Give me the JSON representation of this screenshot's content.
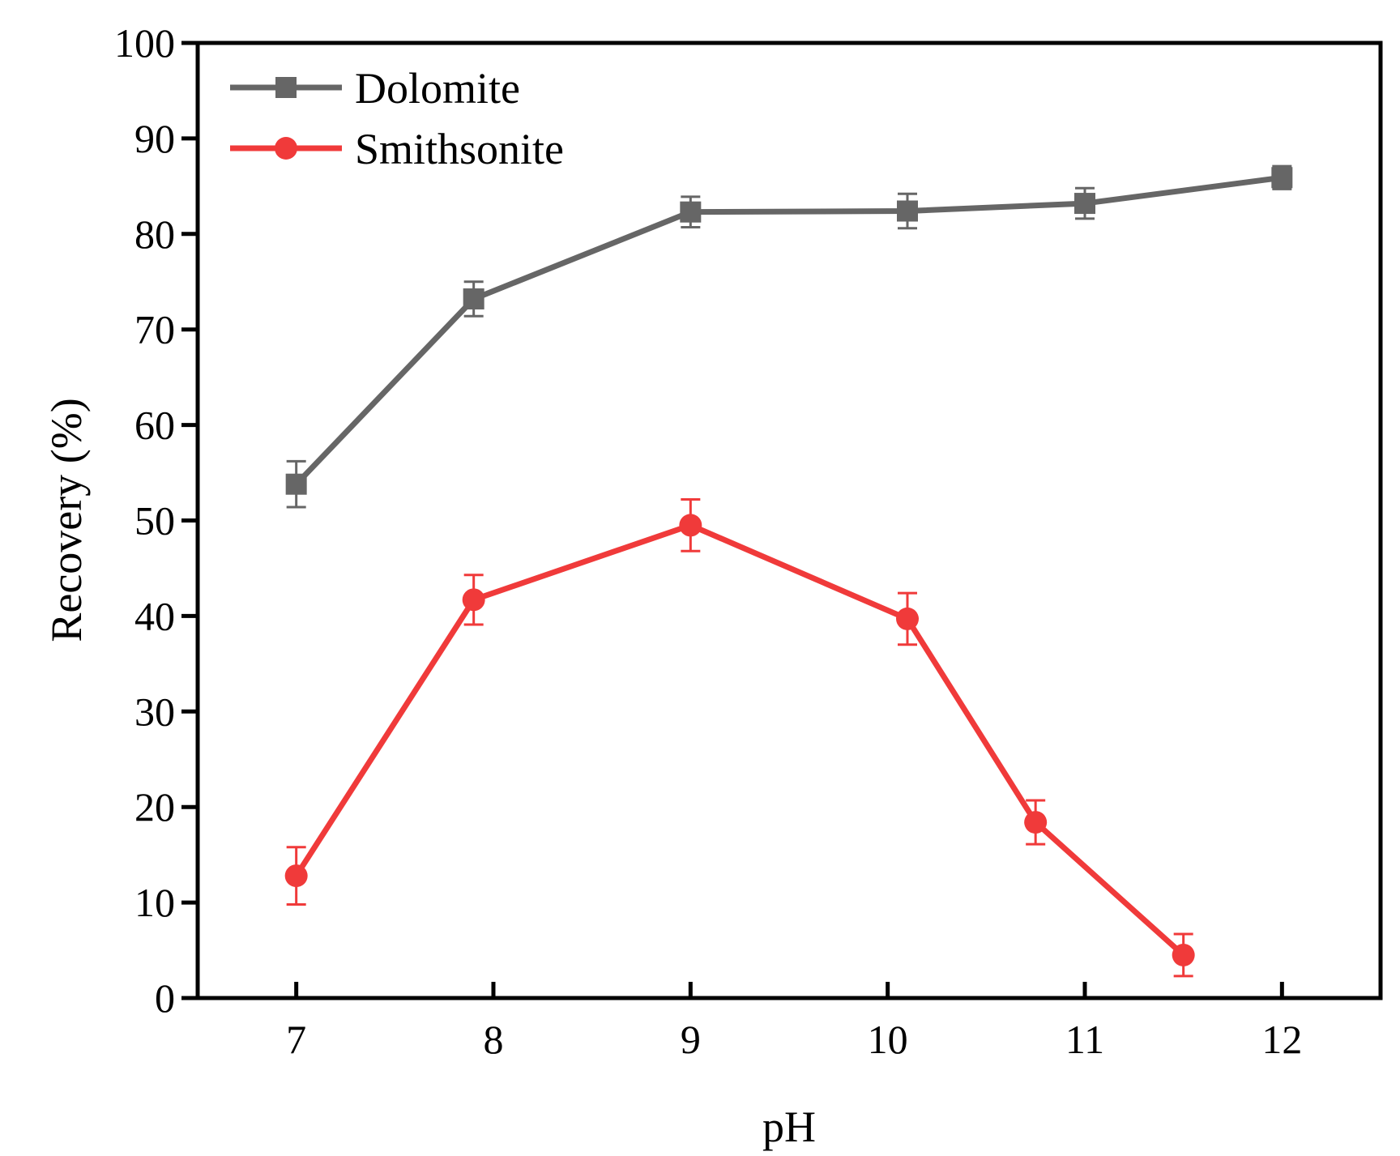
{
  "chart_data": {
    "type": "line",
    "title": "",
    "xlabel": "pH",
    "ylabel": "Recovery (%)",
    "xlim": [
      6.5,
      12.5
    ],
    "ylim": [
      0,
      100
    ],
    "xticks": [
      7,
      8,
      9,
      10,
      11,
      12
    ],
    "yticks": [
      0,
      10,
      20,
      30,
      40,
      50,
      60,
      70,
      80,
      90,
      100
    ],
    "xtick_labels": [
      "7",
      "8",
      "9",
      "10",
      "11",
      "12"
    ],
    "ytick_labels": [
      "0",
      "10",
      "20",
      "30",
      "40",
      "50",
      "60",
      "70",
      "80",
      "90",
      "100"
    ],
    "legend_position": "top-left",
    "grid": false,
    "series": [
      {
        "name": "Dolomite",
        "color": "#666666",
        "marker": "square",
        "x": [
          7,
          7.9,
          9,
          10.1,
          11,
          12
        ],
        "y": [
          53.8,
          73.2,
          82.3,
          82.4,
          83.2,
          85.9
        ],
        "error": [
          2.4,
          1.8,
          1.6,
          1.8,
          1.6,
          1.2
        ]
      },
      {
        "name": "Smithsonite",
        "color": "#f03a3a",
        "marker": "circle",
        "x": [
          7,
          7.9,
          9,
          10.1,
          10.75,
          11.5
        ],
        "y": [
          12.8,
          41.7,
          49.5,
          39.7,
          18.4,
          4.5
        ],
        "error": [
          3.0,
          2.6,
          2.7,
          2.7,
          2.3,
          2.2
        ]
      }
    ]
  }
}
